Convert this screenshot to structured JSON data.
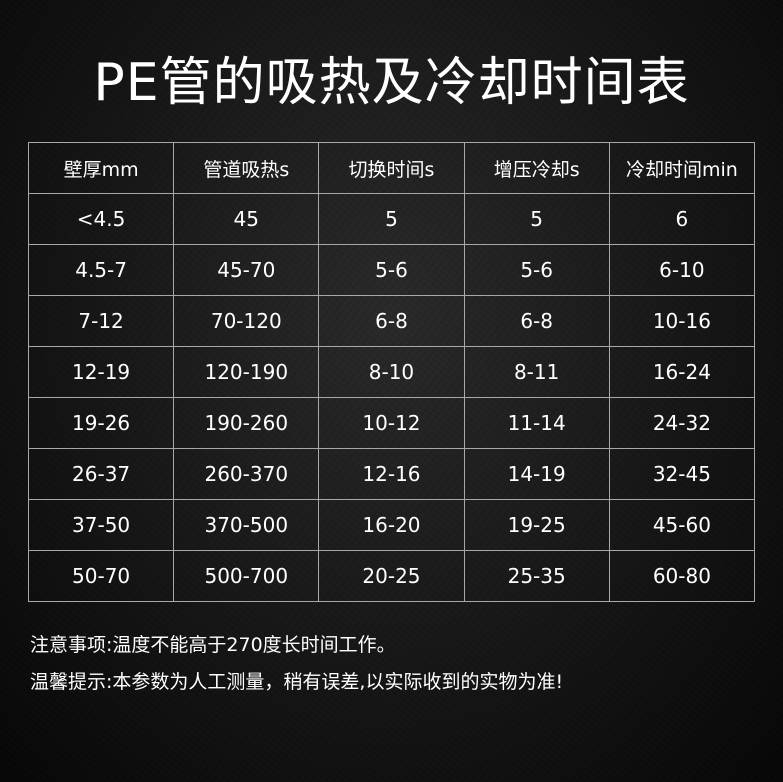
{
  "title": "PE管的吸热及冷却时间表",
  "table": {
    "headers": [
      "壁厚mm",
      "管道吸热s",
      "切换时间s",
      "增压冷却s",
      "冷却时间min"
    ],
    "rows": [
      [
        "<4.5",
        "45",
        "5",
        "5",
        "6"
      ],
      [
        "4.5-7",
        "45-70",
        "5-6",
        "5-6",
        "6-10"
      ],
      [
        "7-12",
        "70-120",
        "6-8",
        "6-8",
        "10-16"
      ],
      [
        "12-19",
        "120-190",
        "8-10",
        "8-11",
        "16-24"
      ],
      [
        "19-26",
        "190-260",
        "10-12",
        "11-14",
        "24-32"
      ],
      [
        "26-37",
        "260-370",
        "12-16",
        "14-19",
        "32-45"
      ],
      [
        "37-50",
        "370-500",
        "16-20",
        "19-25",
        "45-60"
      ],
      [
        "50-70",
        "500-700",
        "20-25",
        "25-35",
        "60-80"
      ]
    ]
  },
  "notes": [
    "注意事项:温度不能高于270度长时间工作。",
    "温馨提示:本参数为人工测量，稍有误差,以实际收到的实物为准!"
  ]
}
